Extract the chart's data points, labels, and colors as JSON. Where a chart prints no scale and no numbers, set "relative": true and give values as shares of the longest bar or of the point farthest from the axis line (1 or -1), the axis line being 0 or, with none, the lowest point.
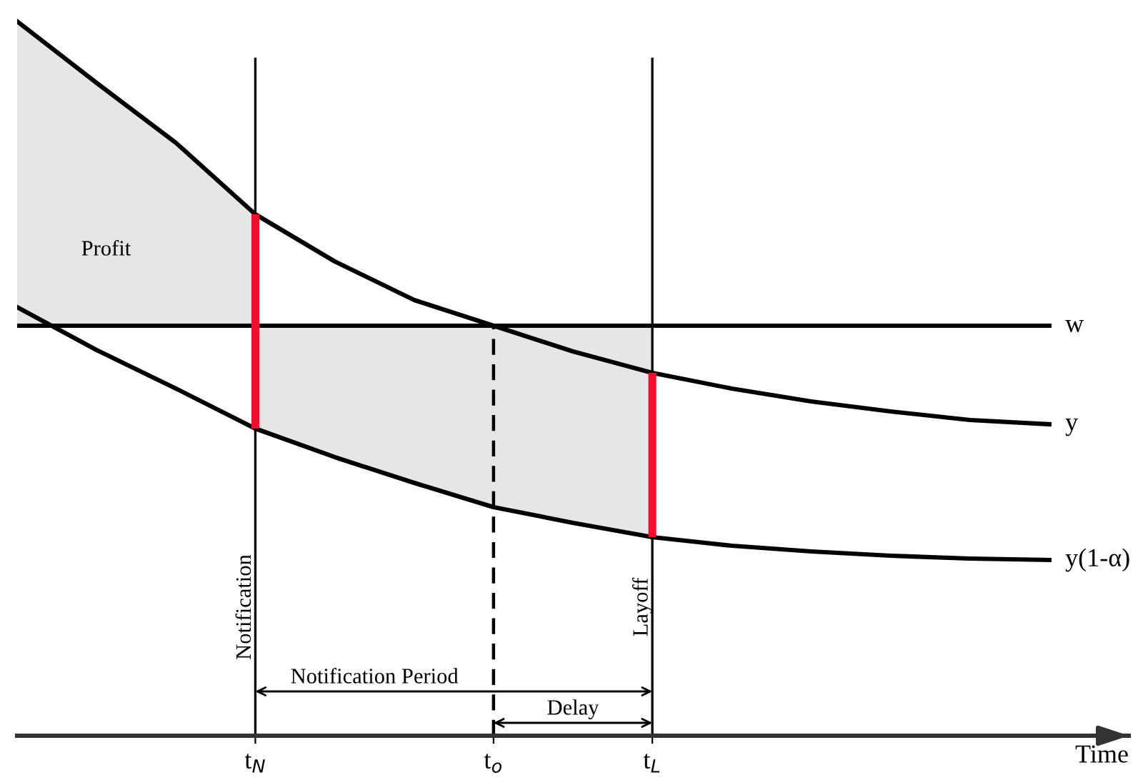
{
  "chart_data": {
    "type": "line",
    "relative": true,
    "xlabel": "Time",
    "categories": [
      null,
      null,
      null,
      "t$_{N}$",
      null,
      null,
      "t$_{o}$",
      null,
      "t$_{L}$",
      null,
      null,
      null,
      null,
      null
    ],
    "grid": false,
    "tick_labels": "x",
    "series": [
      {
        "name": "y",
        "color": "#000000",
        "values": [
          1.0,
          0.914,
          0.83,
          0.73,
          0.664,
          0.61,
          0.574,
          0.538,
          0.508,
          0.486,
          0.468,
          0.454,
          0.442,
          0.436
        ]
      },
      {
        "name": "w",
        "color": "#000000",
        "values": [
          0.574,
          0.574,
          0.574,
          0.574,
          0.574,
          0.574,
          0.574,
          0.574,
          0.574,
          0.574,
          0.574,
          0.574,
          0.574,
          0.574
        ]
      },
      {
        "name": "y(1-α)",
        "color": "#000000",
        "values": [
          0.6,
          0.54,
          0.486,
          0.43,
          0.39,
          0.354,
          0.32,
          0.298,
          0.278,
          0.266,
          0.258,
          0.252,
          0.248,
          0.246
        ]
      }
    ],
    "ref_lines": [
      {
        "axis": "x",
        "value": "t$_{N}$",
        "label": "Notification"
      },
      {
        "axis": "x",
        "value": "t$_{o}$",
        "line_style": "dashed"
      },
      {
        "axis": "x",
        "value": "t$_{L}$",
        "label": "Layoff"
      }
    ],
    "annotations": [
      "Profit",
      "Notification Period",
      "Delay"
    ]
  }
}
